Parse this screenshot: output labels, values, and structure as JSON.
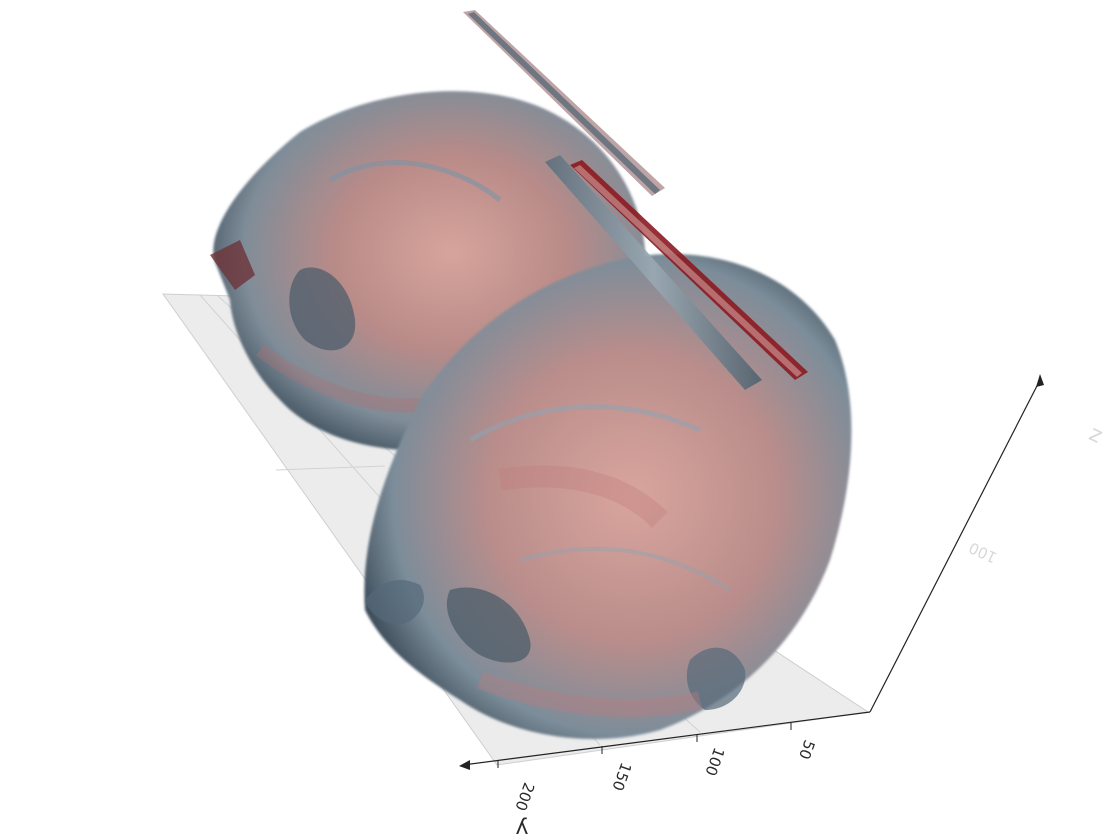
{
  "axes": {
    "y": {
      "title": "y",
      "ticks": [
        "200",
        "150",
        "100",
        "50"
      ]
    },
    "z": {
      "title": "z",
      "ticks": [
        "100"
      ]
    }
  },
  "colors": {
    "background": "#ffffff",
    "floor": "#ececec",
    "skin_red": "#c9787a",
    "shadow_blue": "#5d7384",
    "axis_line": "#222222"
  }
}
